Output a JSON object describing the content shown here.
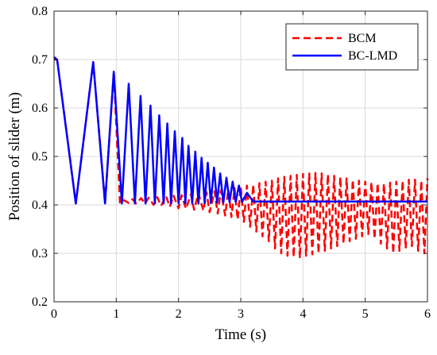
{
  "chart_data": {
    "type": "line",
    "title": "",
    "xlabel": "Time (s)",
    "ylabel": "Position of slider (m)",
    "xlim": [
      0,
      6
    ],
    "ylim": [
      0.2,
      0.8
    ],
    "xticks": [
      0,
      1,
      2,
      3,
      4,
      5,
      6
    ],
    "yticks": [
      0.2,
      0.3,
      0.4,
      0.5,
      0.6,
      0.7,
      0.8
    ],
    "xtick_labels": [
      "0",
      "1",
      "2",
      "3",
      "4",
      "5",
      "6"
    ],
    "ytick_labels": [
      "0.2",
      "0.3",
      "0.4",
      "0.5",
      "0.6",
      "0.7",
      "0.8"
    ],
    "grid": true,
    "legend_position": "top-right",
    "series": [
      {
        "name": "BCM",
        "color": "#ff0000",
        "style": "dashed",
        "x": [
          0,
          0.05,
          0.35,
          0.63,
          0.82,
          0.96,
          1.06,
          1.12,
          1.2,
          1.26,
          1.32,
          1.4,
          1.46,
          1.52,
          1.6,
          1.66,
          1.72,
          1.8,
          1.86,
          1.92,
          2.0,
          2.05,
          2.12,
          2.2,
          2.25,
          2.32,
          2.4,
          2.45,
          2.5,
          2.58,
          2.63,
          2.68,
          2.75,
          2.8,
          2.85,
          2.9,
          2.95,
          3.0,
          3.05,
          3.1,
          3.15,
          3.2,
          3.25,
          3.3,
          3.35,
          3.4,
          3.45,
          3.5,
          3.55,
          3.6,
          3.65,
          3.7,
          3.75,
          3.8,
          3.85,
          3.9,
          3.95,
          4.0,
          4.05,
          4.1,
          4.15,
          4.2,
          4.25,
          4.3,
          4.35,
          4.4,
          4.45,
          4.5,
          4.55,
          4.6,
          4.65,
          4.7,
          4.75,
          4.8,
          4.85,
          4.9,
          4.95,
          5.0,
          5.05,
          5.1,
          5.15,
          5.2,
          5.25,
          5.3,
          5.35,
          5.4,
          5.45,
          5.5,
          5.55,
          5.6,
          5.65,
          5.7,
          5.75,
          5.8,
          5.85,
          5.9,
          5.95,
          6.0
        ],
        "y": [
          0.7,
          0.7,
          0.403,
          0.695,
          0.403,
          0.675,
          0.403,
          0.41,
          0.404,
          0.412,
          0.403,
          0.414,
          0.402,
          0.415,
          0.4,
          0.416,
          0.398,
          0.418,
          0.396,
          0.419,
          0.393,
          0.42,
          0.392,
          0.422,
          0.39,
          0.424,
          0.388,
          0.426,
          0.385,
          0.428,
          0.382,
          0.43,
          0.378,
          0.432,
          0.375,
          0.435,
          0.37,
          0.438,
          0.365,
          0.44,
          0.355,
          0.442,
          0.345,
          0.445,
          0.335,
          0.448,
          0.325,
          0.45,
          0.31,
          0.455,
          0.3,
          0.458,
          0.295,
          0.46,
          0.292,
          0.462,
          0.29,
          0.464,
          0.295,
          0.465,
          0.298,
          0.466,
          0.3,
          0.465,
          0.305,
          0.463,
          0.31,
          0.46,
          0.315,
          0.458,
          0.32,
          0.455,
          0.325,
          0.452,
          0.33,
          0.45,
          0.335,
          0.448,
          0.34,
          0.447,
          0.33,
          0.445,
          0.32,
          0.444,
          0.31,
          0.446,
          0.3,
          0.448,
          0.305,
          0.45,
          0.31,
          0.452,
          0.315,
          0.452,
          0.305,
          0.45,
          0.3,
          0.455
        ]
      },
      {
        "name": "BC-LMD",
        "color": "#0000ff",
        "style": "solid",
        "x": [
          0,
          0.05,
          0.35,
          0.63,
          0.82,
          0.96,
          1.09,
          1.2,
          1.3,
          1.39,
          1.47,
          1.55,
          1.62,
          1.69,
          1.76,
          1.82,
          1.88,
          1.94,
          2.0,
          2.06,
          2.11,
          2.16,
          2.22,
          2.27,
          2.32,
          2.37,
          2.42,
          2.47,
          2.52,
          2.57,
          2.62,
          2.67,
          2.72,
          2.77,
          2.82,
          2.87,
          2.92,
          2.97,
          3.02,
          3.1,
          3.2,
          3.5,
          4.0,
          5.0,
          6.0
        ],
        "y": [
          0.705,
          0.7,
          0.403,
          0.695,
          0.403,
          0.675,
          0.403,
          0.65,
          0.403,
          0.625,
          0.403,
          0.605,
          0.403,
          0.585,
          0.403,
          0.568,
          0.403,
          0.552,
          0.403,
          0.538,
          0.403,
          0.522,
          0.403,
          0.51,
          0.403,
          0.497,
          0.404,
          0.487,
          0.404,
          0.477,
          0.405,
          0.465,
          0.405,
          0.456,
          0.406,
          0.448,
          0.406,
          0.44,
          0.406,
          0.425,
          0.407,
          0.407,
          0.407,
          0.407,
          0.407
        ]
      }
    ]
  }
}
